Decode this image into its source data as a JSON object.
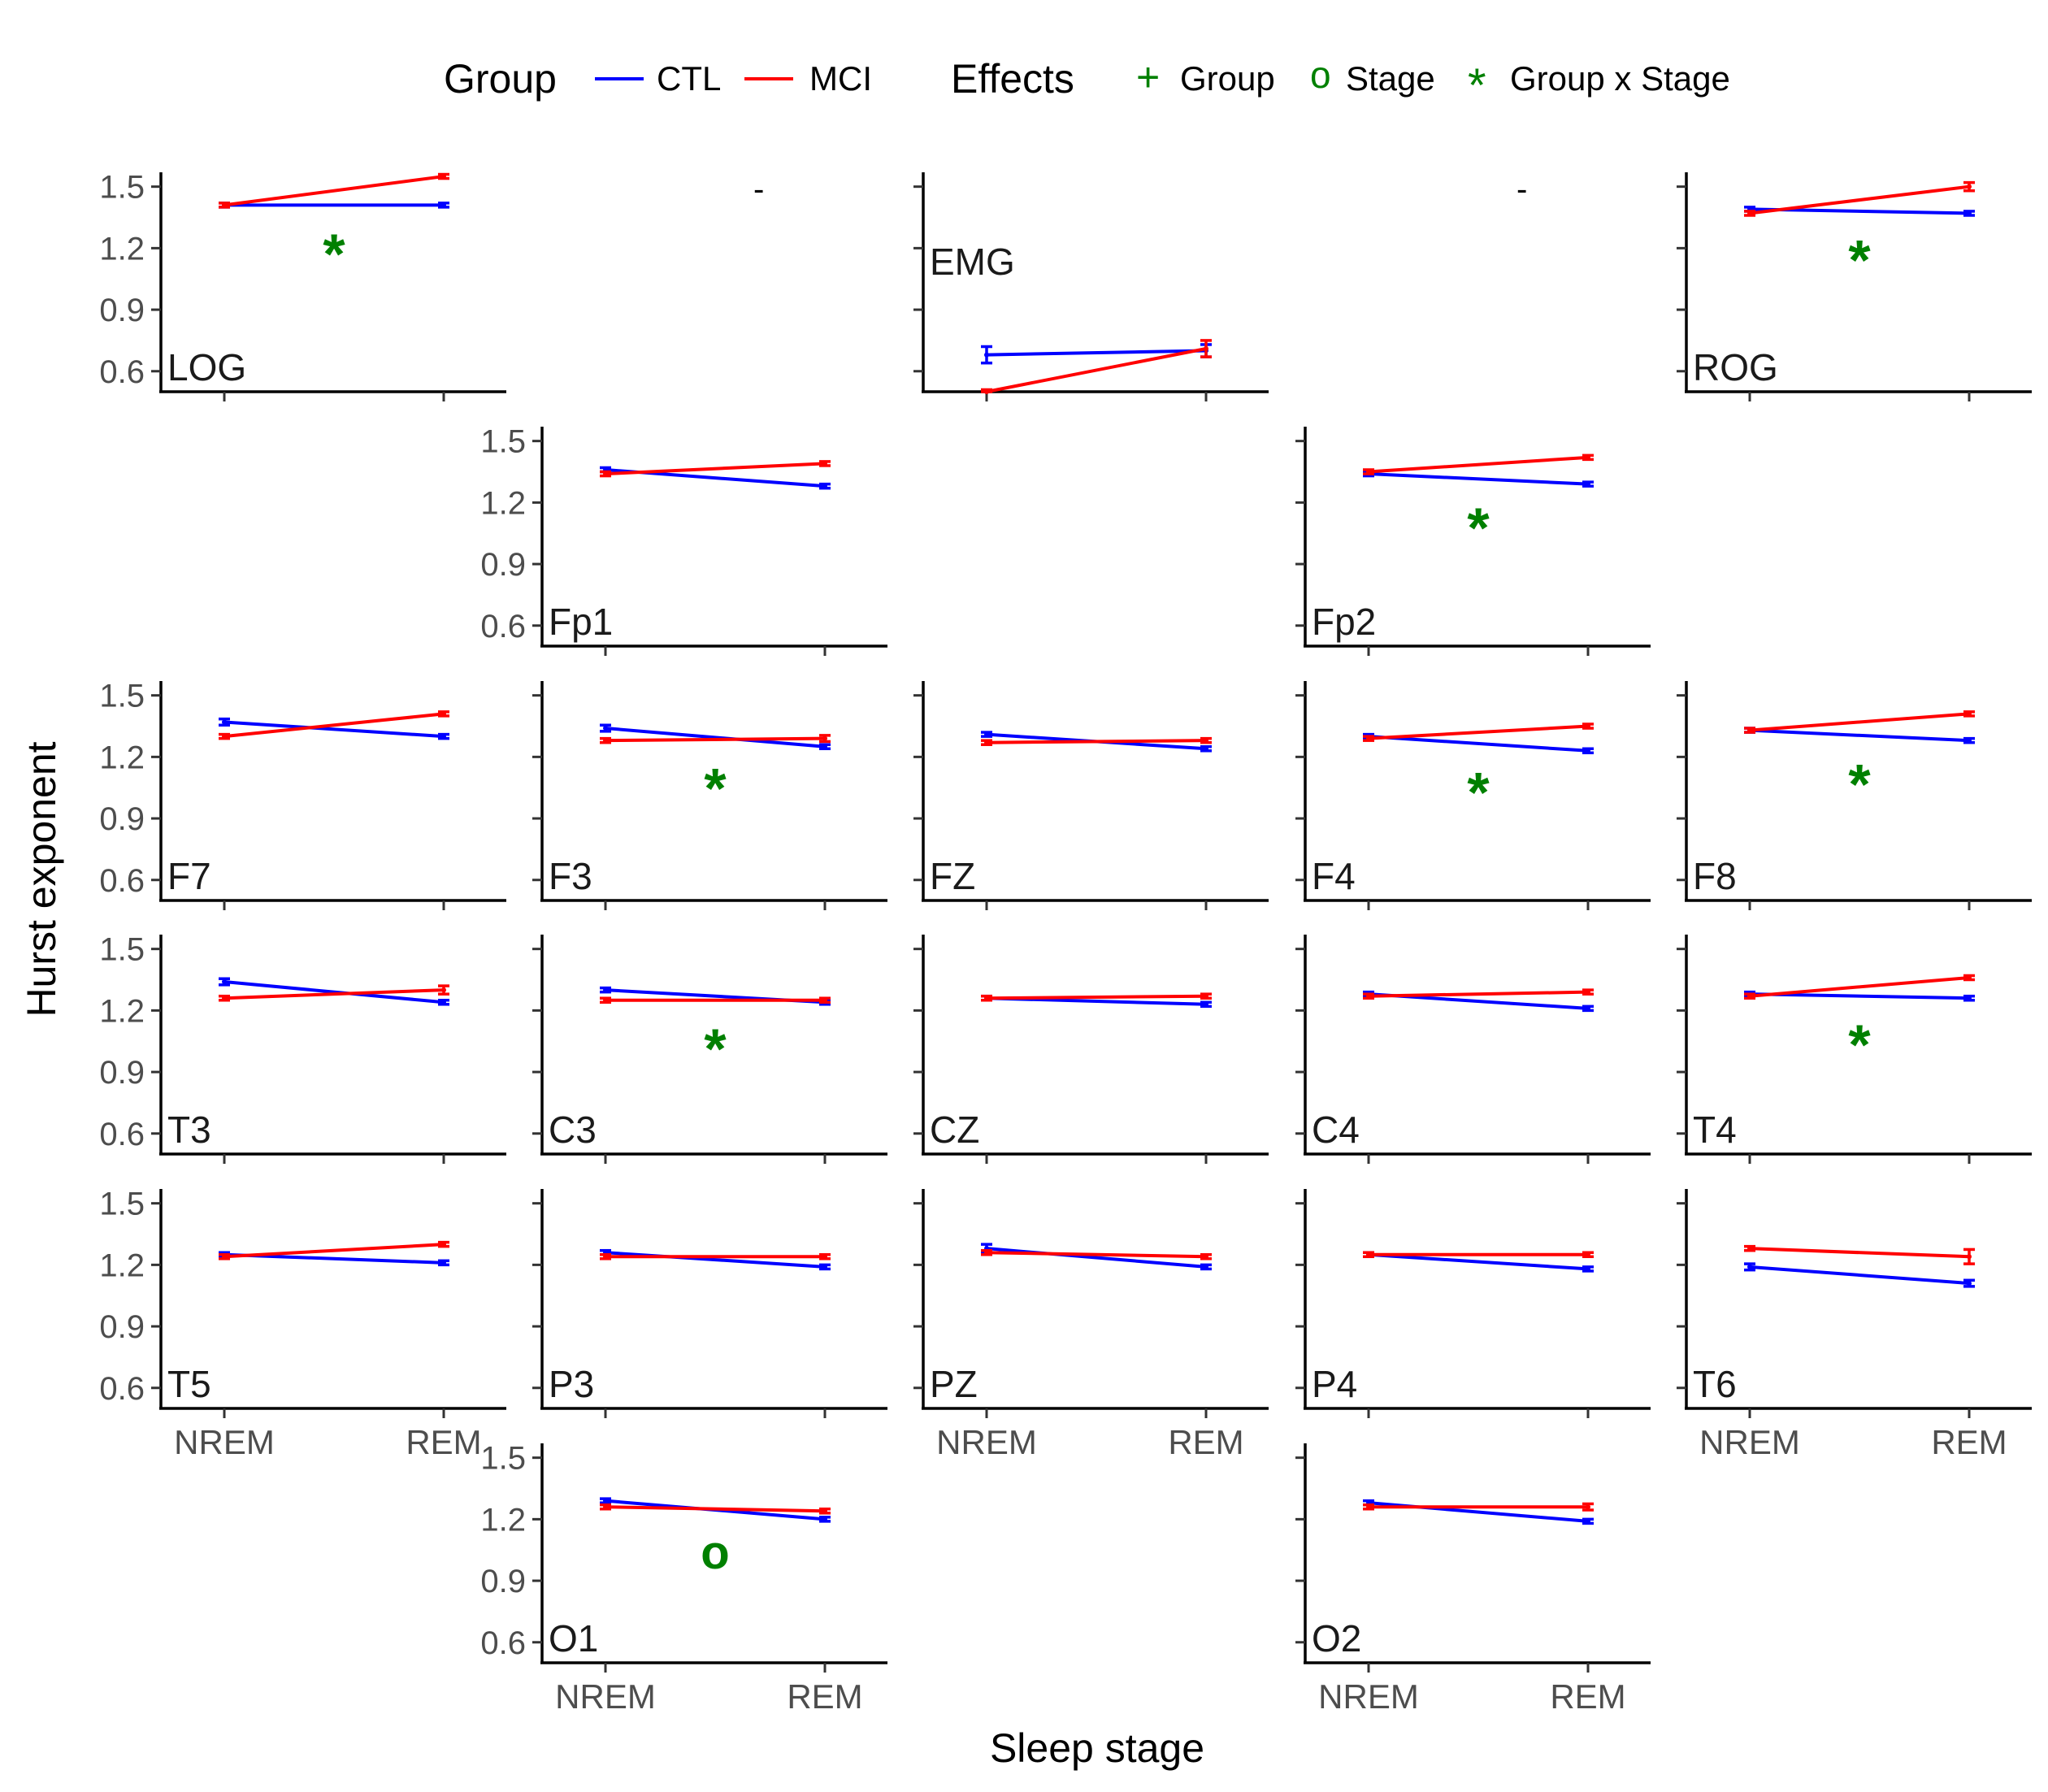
{
  "legend": {
    "group_title": "Group",
    "effects_title": "Effects",
    "groups": [
      {
        "name": "CTL",
        "color": "#0000ff"
      },
      {
        "name": "MCI",
        "color": "#ff0000"
      }
    ],
    "effects": [
      {
        "symbol": "+",
        "label": "Group"
      },
      {
        "symbol": "o",
        "label": "Stage"
      },
      {
        "symbol": "*",
        "label": "Group x Stage"
      }
    ],
    "effect_color": "#008000"
  },
  "axes": {
    "ylabel": "Hurst exponent",
    "xlabel": "Sleep stage",
    "y_ticks": [
      "1.5",
      "1.2",
      "0.9",
      "0.6"
    ],
    "x_ticks": [
      "NREM",
      "REM"
    ]
  },
  "chart_data": {
    "type": "line",
    "x": [
      "NREM",
      "REM"
    ],
    "ylim": [
      0.5,
      1.57
    ],
    "grid": false,
    "legend_position": "top",
    "panels": [
      {
        "label": "LOG",
        "row": 0,
        "col": 0,
        "effect": "*",
        "y_tick_labels": true,
        "x_tick_labels": false,
        "CTL": {
          "values": [
            1.41,
            1.41
          ],
          "errors": [
            0.01,
            0.01
          ]
        },
        "MCI": {
          "values": [
            1.41,
            1.55
          ],
          "errors": [
            0.01,
            0.01
          ]
        }
      },
      {
        "label": "",
        "row": 0,
        "col": 1,
        "effect": "-",
        "empty": true
      },
      {
        "label": "EMG",
        "row": 0,
        "col": 2,
        "effect": "",
        "y_tick_labels": false,
        "x_tick_labels": false,
        "CTL": {
          "values": [
            0.68,
            0.7
          ],
          "errors": [
            0.04,
            0.03
          ]
        },
        "MCI": {
          "values": [
            0.5,
            0.71
          ],
          "errors": [
            0.01,
            0.04
          ]
        }
      },
      {
        "label": "",
        "row": 0,
        "col": 3,
        "effect": "-",
        "empty": true
      },
      {
        "label": "ROG",
        "row": 0,
        "col": 4,
        "effect": "*",
        "y_tick_labels": false,
        "x_tick_labels": false,
        "CTL": {
          "values": [
            1.39,
            1.37
          ],
          "errors": [
            0.01,
            0.01
          ]
        },
        "MCI": {
          "values": [
            1.37,
            1.5
          ],
          "errors": [
            0.01,
            0.02
          ]
        }
      },
      {
        "label": "Fp1",
        "row": 1,
        "col": 1,
        "effect": "",
        "y_tick_labels": true,
        "x_tick_labels": false,
        "CTL": {
          "values": [
            1.36,
            1.28
          ],
          "errors": [
            0.01,
            0.01
          ]
        },
        "MCI": {
          "values": [
            1.34,
            1.39
          ],
          "errors": [
            0.01,
            0.01
          ]
        }
      },
      {
        "label": "Fp2",
        "row": 1,
        "col": 3,
        "effect": "*",
        "y_tick_labels": false,
        "x_tick_labels": false,
        "CTL": {
          "values": [
            1.34,
            1.29
          ],
          "errors": [
            0.01,
            0.01
          ]
        },
        "MCI": {
          "values": [
            1.35,
            1.42
          ],
          "errors": [
            0.01,
            0.01
          ]
        }
      },
      {
        "label": "F7",
        "row": 2,
        "col": 0,
        "effect": "",
        "y_tick_labels": true,
        "x_tick_labels": false,
        "CTL": {
          "values": [
            1.37,
            1.3
          ],
          "errors": [
            0.015,
            0.01
          ]
        },
        "MCI": {
          "values": [
            1.3,
            1.41
          ],
          "errors": [
            0.01,
            0.01
          ]
        }
      },
      {
        "label": "F3",
        "row": 2,
        "col": 1,
        "effect": "*",
        "y_tick_labels": false,
        "x_tick_labels": false,
        "CTL": {
          "values": [
            1.34,
            1.25
          ],
          "errors": [
            0.015,
            0.01
          ]
        },
        "MCI": {
          "values": [
            1.28,
            1.29
          ],
          "errors": [
            0.01,
            0.015
          ]
        }
      },
      {
        "label": "FZ",
        "row": 2,
        "col": 2,
        "effect": "",
        "y_tick_labels": false,
        "x_tick_labels": false,
        "CTL": {
          "values": [
            1.31,
            1.24
          ],
          "errors": [
            0.01,
            0.01
          ]
        },
        "MCI": {
          "values": [
            1.27,
            1.28
          ],
          "errors": [
            0.01,
            0.01
          ]
        }
      },
      {
        "label": "F4",
        "row": 2,
        "col": 3,
        "effect": "*",
        "y_tick_labels": false,
        "x_tick_labels": false,
        "CTL": {
          "values": [
            1.3,
            1.23
          ],
          "errors": [
            0.01,
            0.01
          ]
        },
        "MCI": {
          "values": [
            1.29,
            1.35
          ],
          "errors": [
            0.01,
            0.01
          ]
        }
      },
      {
        "label": "F8",
        "row": 2,
        "col": 4,
        "effect": "*",
        "y_tick_labels": false,
        "x_tick_labels": false,
        "CTL": {
          "values": [
            1.33,
            1.28
          ],
          "errors": [
            0.01,
            0.01
          ]
        },
        "MCI": {
          "values": [
            1.33,
            1.41
          ],
          "errors": [
            0.01,
            0.01
          ]
        }
      },
      {
        "label": "T3",
        "row": 3,
        "col": 0,
        "effect": "",
        "y_tick_labels": true,
        "x_tick_labels": false,
        "CTL": {
          "values": [
            1.34,
            1.24
          ],
          "errors": [
            0.015,
            0.01
          ]
        },
        "MCI": {
          "values": [
            1.26,
            1.3
          ],
          "errors": [
            0.01,
            0.02
          ]
        }
      },
      {
        "label": "C3",
        "row": 3,
        "col": 1,
        "effect": "*",
        "y_tick_labels": false,
        "x_tick_labels": false,
        "CTL": {
          "values": [
            1.3,
            1.24
          ],
          "errors": [
            0.01,
            0.01
          ]
        },
        "MCI": {
          "values": [
            1.25,
            1.25
          ],
          "errors": [
            0.01,
            0.01
          ]
        }
      },
      {
        "label": "CZ",
        "row": 3,
        "col": 2,
        "effect": "",
        "y_tick_labels": false,
        "x_tick_labels": false,
        "CTL": {
          "values": [
            1.26,
            1.23
          ],
          "errors": [
            0.01,
            0.01
          ]
        },
        "MCI": {
          "values": [
            1.26,
            1.27
          ],
          "errors": [
            0.01,
            0.01
          ]
        }
      },
      {
        "label": "C4",
        "row": 3,
        "col": 3,
        "effect": "",
        "y_tick_labels": false,
        "x_tick_labels": false,
        "CTL": {
          "values": [
            1.28,
            1.21
          ],
          "errors": [
            0.01,
            0.01
          ]
        },
        "MCI": {
          "values": [
            1.27,
            1.29
          ],
          "errors": [
            0.01,
            0.01
          ]
        }
      },
      {
        "label": "T4",
        "row": 3,
        "col": 4,
        "effect": "*",
        "y_tick_labels": false,
        "x_tick_labels": false,
        "CTL": {
          "values": [
            1.28,
            1.26
          ],
          "errors": [
            0.01,
            0.01
          ]
        },
        "MCI": {
          "values": [
            1.27,
            1.36
          ],
          "errors": [
            0.01,
            0.01
          ]
        }
      },
      {
        "label": "T5",
        "row": 4,
        "col": 0,
        "effect": "",
        "y_tick_labels": true,
        "x_tick_labels": true,
        "CTL": {
          "values": [
            1.25,
            1.21
          ],
          "errors": [
            0.01,
            0.01
          ]
        },
        "MCI": {
          "values": [
            1.24,
            1.3
          ],
          "errors": [
            0.01,
            0.01
          ]
        }
      },
      {
        "label": "P3",
        "row": 4,
        "col": 1,
        "effect": "",
        "y_tick_labels": false,
        "x_tick_labels": false,
        "CTL": {
          "values": [
            1.26,
            1.19
          ],
          "errors": [
            0.01,
            0.01
          ]
        },
        "MCI": {
          "values": [
            1.24,
            1.24
          ],
          "errors": [
            0.01,
            0.01
          ]
        }
      },
      {
        "label": "PZ",
        "row": 4,
        "col": 2,
        "effect": "",
        "y_tick_labels": false,
        "x_tick_labels": true,
        "CTL": {
          "values": [
            1.28,
            1.19
          ],
          "errors": [
            0.02,
            0.01
          ]
        },
        "MCI": {
          "values": [
            1.26,
            1.24
          ],
          "errors": [
            0.01,
            0.01
          ]
        }
      },
      {
        "label": "P4",
        "row": 4,
        "col": 3,
        "effect": "",
        "y_tick_labels": false,
        "x_tick_labels": false,
        "CTL": {
          "values": [
            1.25,
            1.18
          ],
          "errors": [
            0.01,
            0.01
          ]
        },
        "MCI": {
          "values": [
            1.25,
            1.25
          ],
          "errors": [
            0.01,
            0.01
          ]
        }
      },
      {
        "label": "T6",
        "row": 4,
        "col": 4,
        "effect": "",
        "y_tick_labels": false,
        "x_tick_labels": true,
        "CTL": {
          "values": [
            1.19,
            1.11
          ],
          "errors": [
            0.015,
            0.015
          ]
        },
        "MCI": {
          "values": [
            1.28,
            1.24
          ],
          "errors": [
            0.01,
            0.035
          ]
        }
      },
      {
        "label": "O1",
        "row": 5,
        "col": 1,
        "effect": "o",
        "y_tick_labels": true,
        "x_tick_labels": true,
        "CTL": {
          "values": [
            1.29,
            1.2
          ],
          "errors": [
            0.01,
            0.01
          ]
        },
        "MCI": {
          "values": [
            1.26,
            1.24
          ],
          "errors": [
            0.01,
            0.01
          ]
        }
      },
      {
        "label": "O2",
        "row": 5,
        "col": 3,
        "effect": "",
        "y_tick_labels": false,
        "x_tick_labels": true,
        "CTL": {
          "values": [
            1.28,
            1.19
          ],
          "errors": [
            0.01,
            0.01
          ]
        },
        "MCI": {
          "values": [
            1.26,
            1.26
          ],
          "errors": [
            0.01,
            0.015
          ]
        }
      }
    ]
  }
}
